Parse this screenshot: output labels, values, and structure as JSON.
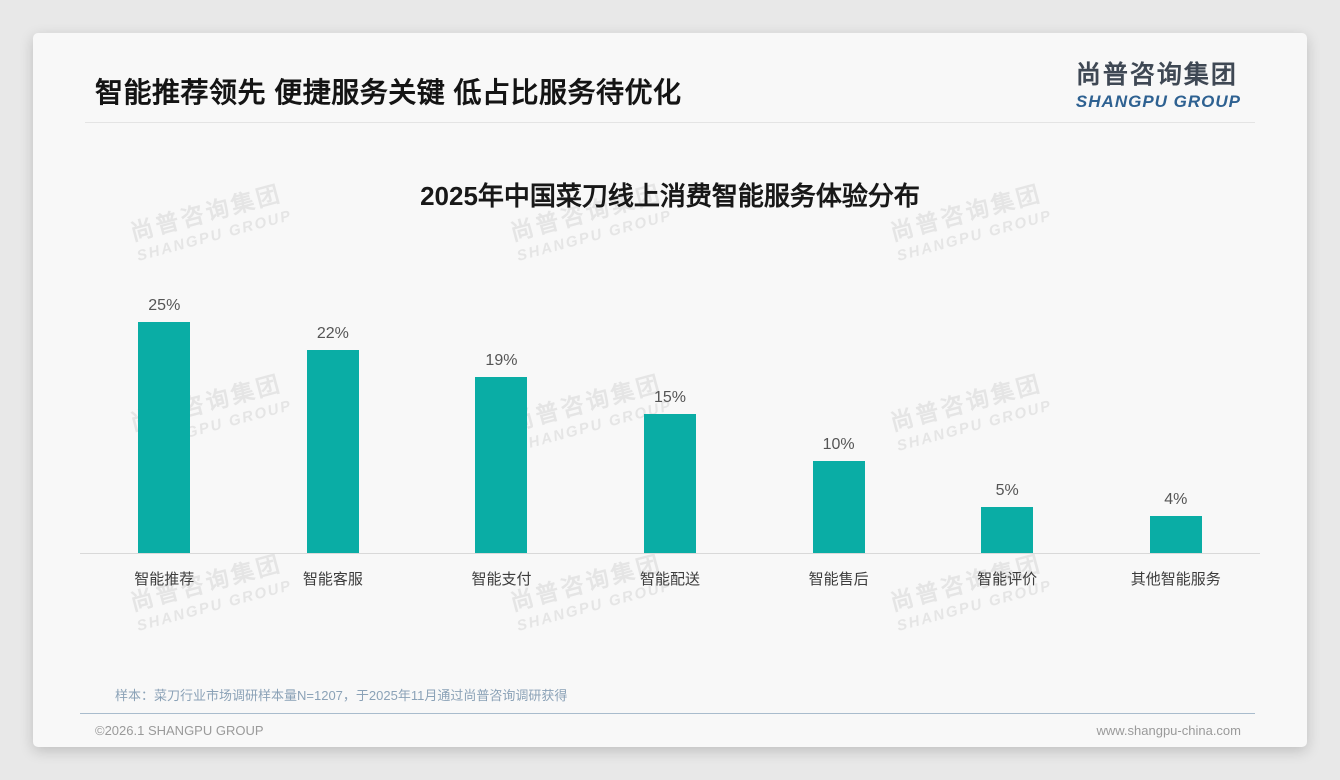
{
  "header": {
    "title": "智能推荐领先 便捷服务关键 低占比服务待优化",
    "logo": {
      "cn": "尚普咨询集团",
      "en": "SHANGPU GROUP"
    }
  },
  "watermark": {
    "cn": "尚普咨询集团",
    "en": "SHANGPU GROUP"
  },
  "chart_data": {
    "type": "bar",
    "title": "2025年中国菜刀线上消费智能服务体验分布",
    "categories": [
      "智能推荐",
      "智能客服",
      "智能支付",
      "智能配送",
      "智能售后",
      "智能评价",
      "其他智能服务"
    ],
    "values": [
      25,
      22,
      19,
      15,
      10,
      5,
      4
    ],
    "value_labels": [
      "25%",
      "22%",
      "19%",
      "15%",
      "10%",
      "5%",
      "4%"
    ],
    "unit": "%",
    "xlabel": "",
    "ylabel": "",
    "ylim": [
      0,
      28
    ],
    "grid": false,
    "legend": false,
    "bar_color": "#0aada5",
    "value_label_color": "#555555",
    "axis_line_color": "#d9d9d9"
  },
  "footer": {
    "sample_note": "样本：菜刀行业市场调研样本量N=1207，于2025年11月通过尚普咨询调研获得",
    "copyright": "©2026.1 SHANGPU GROUP",
    "website": "www.shangpu-china.com"
  },
  "colors": {
    "accent_teal": "#0aada5",
    "logo_cn": "#3f4854",
    "logo_en": "#2e6191",
    "note_blue_gray": "#8ba2b7",
    "card_bg": "#f8f8f8",
    "page_bg": "#e8e8e8"
  }
}
